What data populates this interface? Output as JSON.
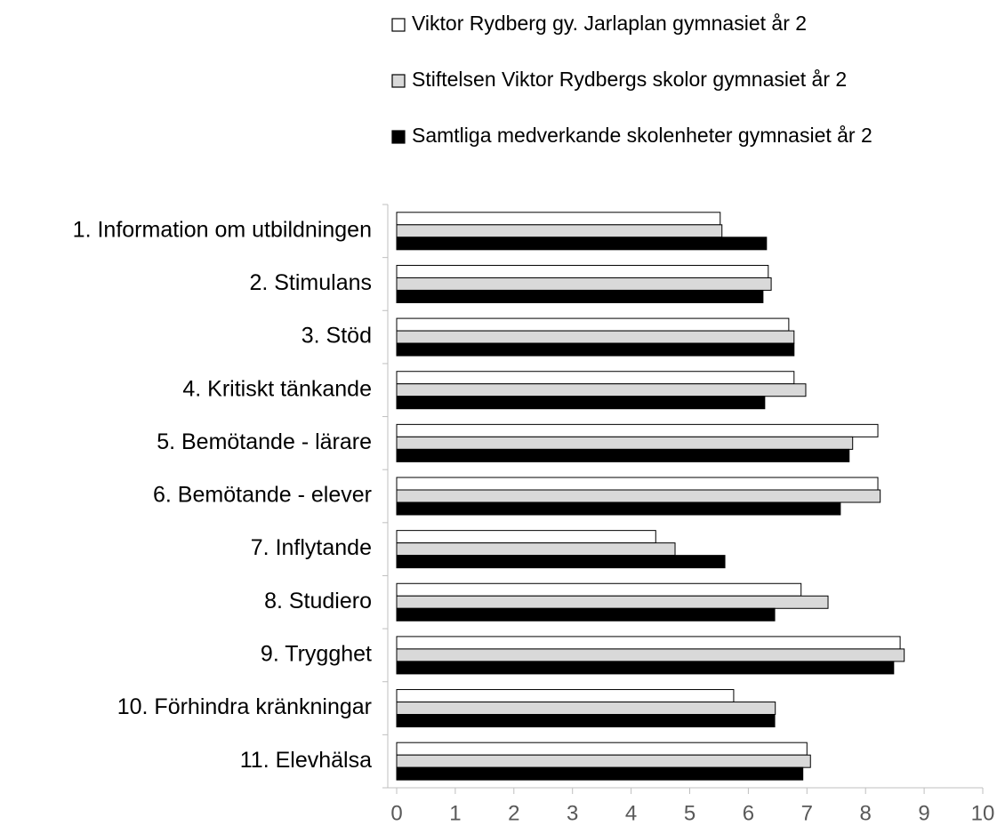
{
  "chart_data": {
    "type": "barh",
    "categories": [
      "1. Information om utbildningen",
      "2. Stimulans",
      "3. Stöd",
      "4. Kritiskt tänkande",
      "5. Bemötande - lärare",
      "6. Bemötande - elever",
      "7. Inflytande",
      "8. Studiero",
      "9. Trygghet",
      "10. Förhindra kränkningar",
      "11. Elevhälsa"
    ],
    "series": [
      {
        "name": "Viktor Rydberg gy. Jarlaplan gymnasiet år 2",
        "color": "#ffffff",
        "values": [
          5.52,
          6.34,
          6.69,
          6.78,
          8.21,
          8.21,
          4.42,
          6.9,
          8.59,
          5.75,
          7.0
        ]
      },
      {
        "name": "Stiftelsen Viktor Rydbergs skolor gymnasiet år 2",
        "color": "#d9d9d9",
        "values": [
          5.55,
          6.39,
          6.78,
          6.98,
          7.78,
          8.25,
          4.75,
          7.36,
          8.66,
          6.46,
          7.06
        ]
      },
      {
        "name": "Samtliga medverkande skolenheter gymnasiet år 2",
        "color": "#000000",
        "values": [
          6.31,
          6.25,
          6.78,
          6.28,
          7.72,
          7.57,
          5.6,
          6.45,
          8.48,
          6.45,
          6.93
        ]
      }
    ],
    "xlim": [
      0,
      10
    ],
    "xticks": [
      0,
      1,
      2,
      3,
      4,
      5,
      6,
      7,
      8,
      9,
      10
    ]
  }
}
